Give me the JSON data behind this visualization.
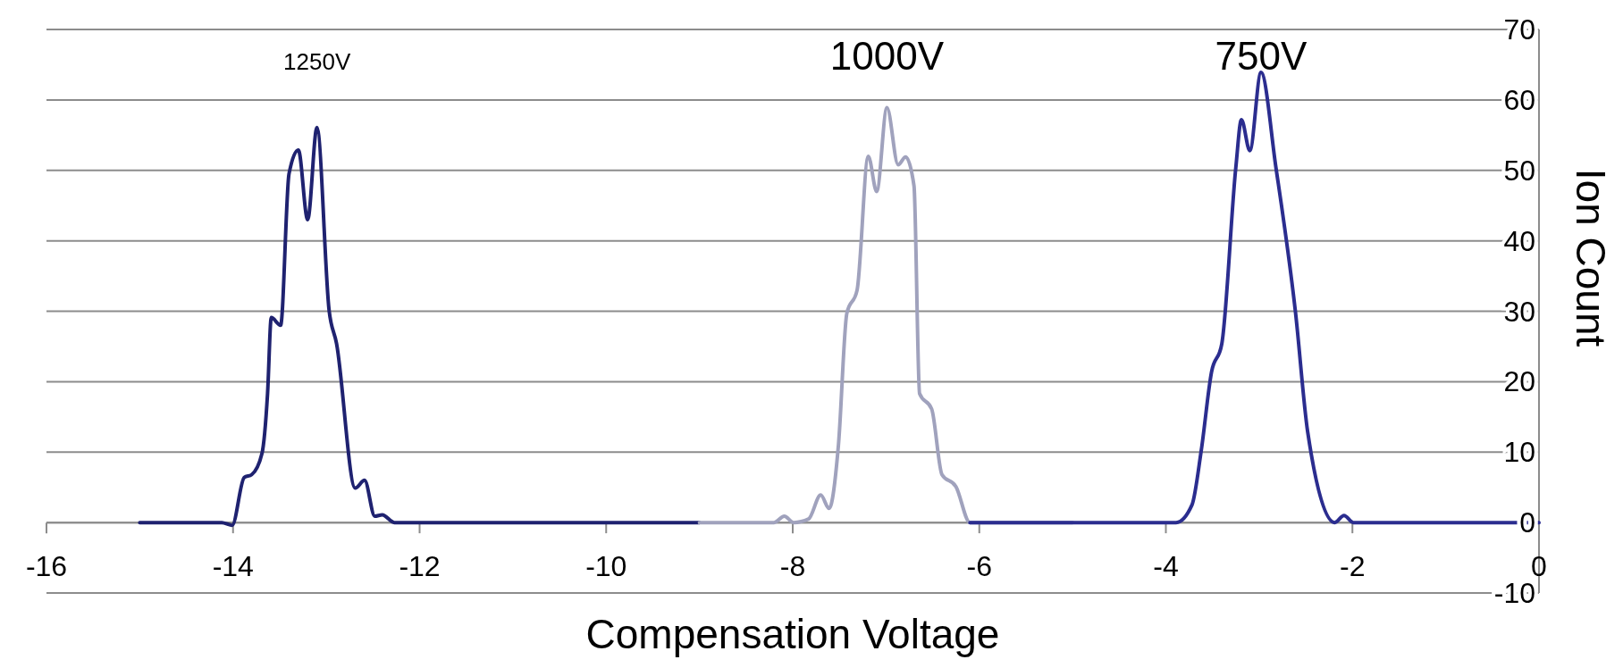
{
  "chart_data": {
    "type": "line",
    "xlabel": "Compensation Voltage",
    "ylabel": "Ion Count",
    "xlim": [
      -16,
      0
    ],
    "ylim": [
      -10,
      70
    ],
    "xticks": [
      -16,
      -14,
      -12,
      -10,
      -8,
      -6,
      -4,
      -2,
      0
    ],
    "yticks": [
      -10,
      0,
      10,
      20,
      30,
      40,
      50,
      60,
      70
    ],
    "grid": "y",
    "marker": "none",
    "line_style": "solid",
    "series": [
      {
        "name": "1250V",
        "color": "#1f2270",
        "x": [
          -15,
          -14.12,
          -14.01,
          -13.88,
          -13.8,
          -13.69,
          -13.63,
          -13.59,
          -13.49,
          -13.4,
          -13.3,
          -13.2,
          -13.1,
          -12.97,
          -12.89,
          -12.69,
          -12.59,
          -12.48,
          -12.4,
          -12.27,
          -9
        ],
        "values": [
          0,
          0,
          -0.4,
          6.4,
          6.8,
          9.8,
          18.3,
          29.1,
          28,
          49.5,
          52.9,
          43,
          56.1,
          30.1,
          25.4,
          4.9,
          6,
          0.9,
          1.1,
          0,
          0
        ]
      },
      {
        "name": "1000V",
        "color": "#a0a2bd",
        "x": [
          -9,
          -8.2,
          -8.09,
          -7.99,
          -7.83,
          -7.7,
          -7.61,
          -7.51,
          -7.42,
          -7.31,
          -7.19,
          -7.1,
          -6.99,
          -6.87,
          -6.79,
          -6.7,
          -6.64,
          -6.51,
          -6.4,
          -6.25,
          -6.1,
          -5
        ],
        "values": [
          0,
          0,
          0.9,
          0,
          0.5,
          3.9,
          2,
          11,
          29.7,
          33,
          52,
          47,
          58.9,
          50.8,
          51.9,
          47.8,
          18.3,
          16.1,
          6.8,
          5.1,
          0,
          0
        ]
      },
      {
        "name": "750V",
        "color": "#2b2d8f",
        "x": [
          -6.1,
          -3.89,
          -3.72,
          -3.62,
          -3.51,
          -3.4,
          -3.25,
          -3.19,
          -3.1,
          -2.98,
          -2.82,
          -2.61,
          -2.48,
          -2.19,
          -2.09,
          -1.99,
          0
        ],
        "values": [
          0,
          0,
          2.5,
          10.3,
          21.4,
          25.4,
          50.4,
          57.2,
          52.8,
          63.9,
          50.4,
          29.8,
          12.9,
          0,
          1,
          0,
          0
        ]
      }
    ]
  }
}
